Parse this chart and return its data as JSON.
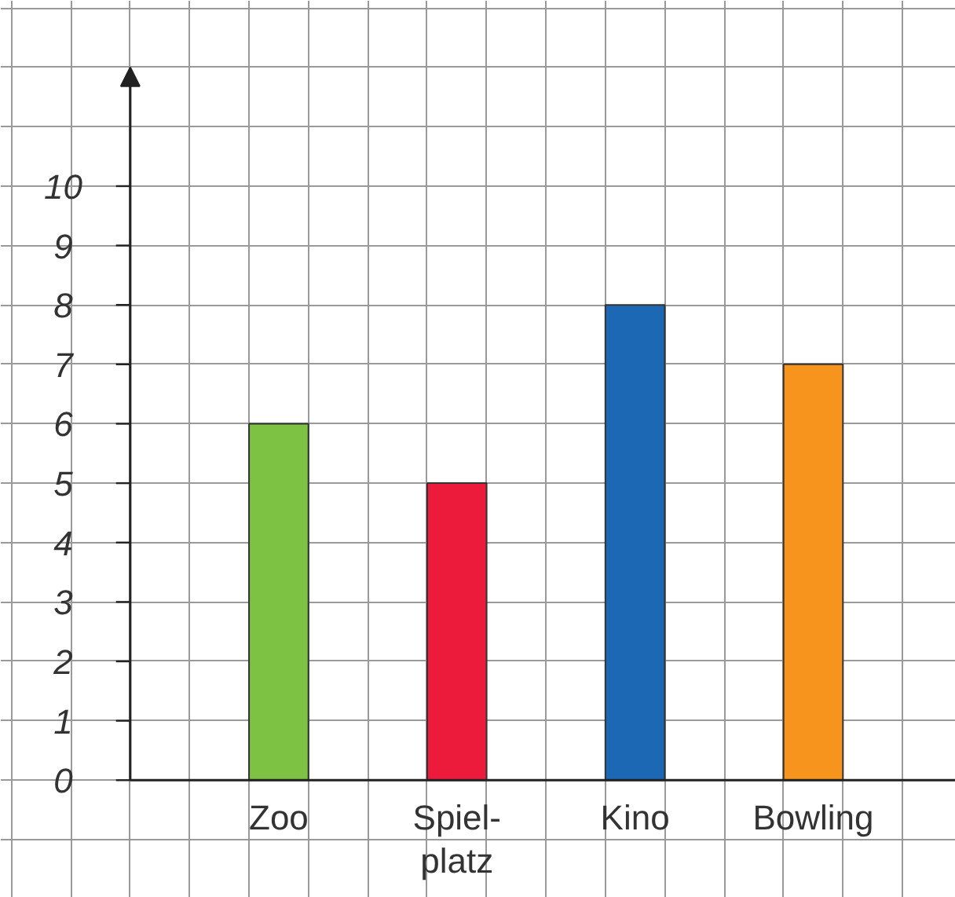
{
  "chart_data": {
    "type": "bar",
    "categories": [
      "Zoo",
      "Spiel-\nplatz",
      "Kino",
      "Bowling"
    ],
    "series": [
      {
        "colors": [
          "#7dc242",
          "#ec1b3b",
          "#1c68b4",
          "#f7941d"
        ],
        "values": [
          6,
          5,
          8,
          7
        ]
      }
    ],
    "ylim": [
      0,
      12
    ],
    "yticks": [
      0,
      1,
      2,
      3,
      4,
      5,
      6,
      7,
      8,
      9,
      10
    ],
    "grid": true
  }
}
